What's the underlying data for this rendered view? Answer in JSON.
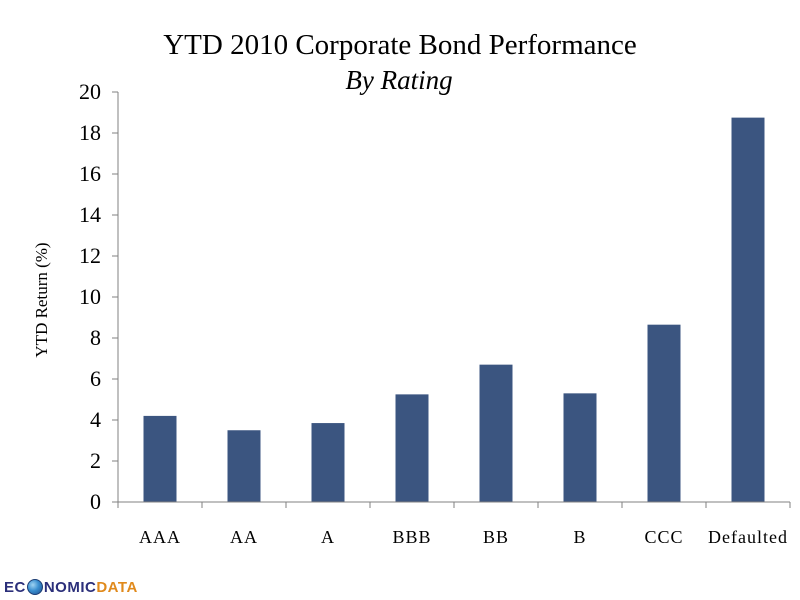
{
  "chart_data": {
    "type": "bar",
    "title": "YTD 2010 Corporate Bond Performance",
    "subtitle": "By Rating",
    "xlabel": "",
    "ylabel": "YTD Return (%)",
    "categories": [
      "AAA",
      "AA",
      "A",
      "BBB",
      "BB",
      "B",
      "CCC",
      "Defaulted"
    ],
    "values": [
      4.2,
      3.5,
      3.85,
      5.25,
      6.7,
      5.3,
      8.65,
      18.75
    ],
    "ylim": [
      0,
      20
    ],
    "yticks": [
      "0",
      "2",
      "4",
      "6",
      "8",
      "10",
      "12",
      "14",
      "16",
      "18",
      "20"
    ],
    "grid": false,
    "legend": "none",
    "bar_color": "#3b5580"
  },
  "logo": {
    "part1": "EC",
    "part2": "NOMIC",
    "part3": "DATA"
  }
}
